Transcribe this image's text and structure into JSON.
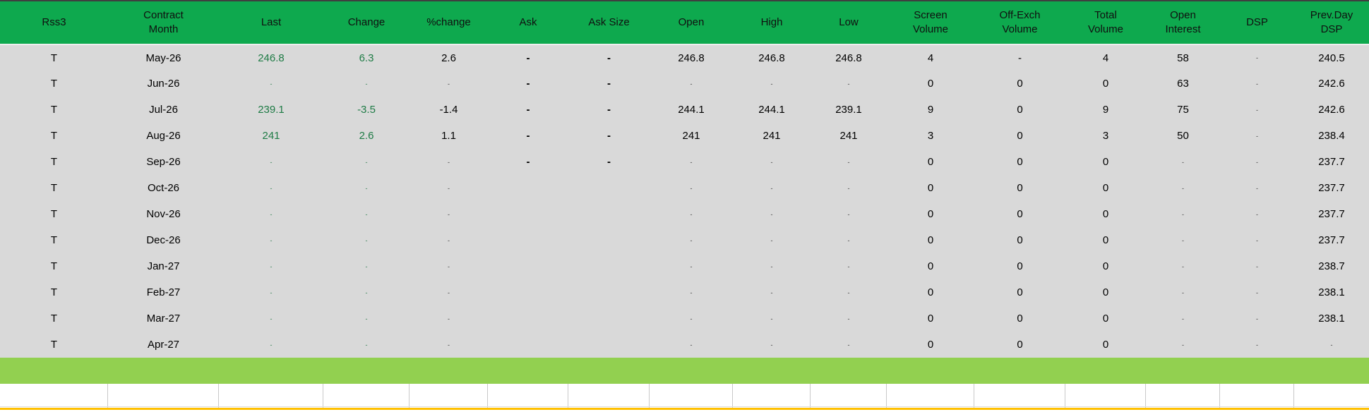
{
  "colors": {
    "header_green": "#0ea94e",
    "row_gray": "#d9d9d9",
    "value_green_text": "#1e7b45",
    "summary_bar_green": "#92d050",
    "bottom_accent_yellow": "#ffc000"
  },
  "header": {
    "columns": [
      {
        "key": "rss3",
        "label": "Rss3"
      },
      {
        "key": "contract-month",
        "label": "Contract\nMonth"
      },
      {
        "key": "last",
        "label": "Last"
      },
      {
        "key": "change",
        "label": "Change"
      },
      {
        "key": "pct-change",
        "label": "%change"
      },
      {
        "key": "ask",
        "label": "Ask"
      },
      {
        "key": "ask-size",
        "label": "Ask Size"
      },
      {
        "key": "open",
        "label": "Open"
      },
      {
        "key": "high",
        "label": "High"
      },
      {
        "key": "low",
        "label": "Low"
      },
      {
        "key": "screen-volume",
        "label": "Screen\nVolume"
      },
      {
        "key": "off-exch-volume",
        "label": "Off-Exch\nVolume"
      },
      {
        "key": "total-volume",
        "label": "Total\nVolume"
      },
      {
        "key": "open-interest",
        "label": "Open\nInterest"
      },
      {
        "key": "dsp",
        "label": "DSP"
      },
      {
        "key": "prevday-dsp",
        "label": "Prev.Day\nDSP"
      }
    ]
  },
  "rows": [
    {
      "cells": [
        {
          "v": "T",
          "k": "t"
        },
        {
          "v": "May-26",
          "k": "t"
        },
        {
          "v": "246.8",
          "k": "g"
        },
        {
          "v": "6.3",
          "k": "g"
        },
        {
          "v": "2.6",
          "k": "t"
        },
        {
          "v": "-",
          "k": "bd"
        },
        {
          "v": "-",
          "k": "bd"
        },
        {
          "v": "246.8",
          "k": "t"
        },
        {
          "v": "246.8",
          "k": "t"
        },
        {
          "v": "246.8",
          "k": "t"
        },
        {
          "v": "4",
          "k": "t"
        },
        {
          "v": "-",
          "k": "d"
        },
        {
          "v": "4",
          "k": "t"
        },
        {
          "v": "58",
          "k": "t"
        },
        {
          "v": "-",
          "k": "s"
        },
        {
          "v": "240.5",
          "k": "t"
        }
      ]
    },
    {
      "cells": [
        {
          "v": "T",
          "k": "t"
        },
        {
          "v": "Jun-26",
          "k": "t"
        },
        {
          "v": "-",
          "k": "sg"
        },
        {
          "v": "-",
          "k": "sg"
        },
        {
          "v": "-",
          "k": "s"
        },
        {
          "v": "-",
          "k": "bd"
        },
        {
          "v": "-",
          "k": "bd"
        },
        {
          "v": "-",
          "k": "s"
        },
        {
          "v": "-",
          "k": "s"
        },
        {
          "v": "-",
          "k": "s"
        },
        {
          "v": "0",
          "k": "t"
        },
        {
          "v": "0",
          "k": "t"
        },
        {
          "v": "0",
          "k": "t"
        },
        {
          "v": "63",
          "k": "t"
        },
        {
          "v": "-",
          "k": "s"
        },
        {
          "v": "242.6",
          "k": "t"
        }
      ]
    },
    {
      "cells": [
        {
          "v": "T",
          "k": "t"
        },
        {
          "v": "Jul-26",
          "k": "t"
        },
        {
          "v": "239.1",
          "k": "g"
        },
        {
          "v": "-3.5",
          "k": "g"
        },
        {
          "v": "-1.4",
          "k": "t"
        },
        {
          "v": "-",
          "k": "bd"
        },
        {
          "v": "-",
          "k": "bd"
        },
        {
          "v": "244.1",
          "k": "t"
        },
        {
          "v": "244.1",
          "k": "t"
        },
        {
          "v": "239.1",
          "k": "t"
        },
        {
          "v": "9",
          "k": "t"
        },
        {
          "v": "0",
          "k": "t"
        },
        {
          "v": "9",
          "k": "t"
        },
        {
          "v": "75",
          "k": "t"
        },
        {
          "v": "-",
          "k": "s"
        },
        {
          "v": "242.6",
          "k": "t"
        }
      ]
    },
    {
      "cells": [
        {
          "v": "T",
          "k": "t"
        },
        {
          "v": "Aug-26",
          "k": "t"
        },
        {
          "v": "241",
          "k": "g"
        },
        {
          "v": "2.6",
          "k": "g"
        },
        {
          "v": "1.1",
          "k": "t"
        },
        {
          "v": "-",
          "k": "bd"
        },
        {
          "v": "-",
          "k": "bd"
        },
        {
          "v": "241",
          "k": "t"
        },
        {
          "v": "241",
          "k": "t"
        },
        {
          "v": "241",
          "k": "t"
        },
        {
          "v": "3",
          "k": "t"
        },
        {
          "v": "0",
          "k": "t"
        },
        {
          "v": "3",
          "k": "t"
        },
        {
          "v": "50",
          "k": "t"
        },
        {
          "v": "-",
          "k": "s"
        },
        {
          "v": "238.4",
          "k": "t"
        }
      ]
    },
    {
      "cells": [
        {
          "v": "T",
          "k": "t"
        },
        {
          "v": "Sep-26",
          "k": "t"
        },
        {
          "v": "-",
          "k": "sg"
        },
        {
          "v": "-",
          "k": "sg"
        },
        {
          "v": "-",
          "k": "s"
        },
        {
          "v": "-",
          "k": "bd"
        },
        {
          "v": "-",
          "k": "bd"
        },
        {
          "v": "-",
          "k": "s"
        },
        {
          "v": "-",
          "k": "s"
        },
        {
          "v": "-",
          "k": "s"
        },
        {
          "v": "0",
          "k": "t"
        },
        {
          "v": "0",
          "k": "t"
        },
        {
          "v": "0",
          "k": "t"
        },
        {
          "v": "-",
          "k": "s"
        },
        {
          "v": "-",
          "k": "s"
        },
        {
          "v": "237.7",
          "k": "t"
        }
      ]
    },
    {
      "cells": [
        {
          "v": "T",
          "k": "t"
        },
        {
          "v": "Oct-26",
          "k": "t"
        },
        {
          "v": "-",
          "k": "sg"
        },
        {
          "v": "-",
          "k": "sg"
        },
        {
          "v": "-",
          "k": "s"
        },
        {
          "v": "",
          "k": "e"
        },
        {
          "v": "",
          "k": "e"
        },
        {
          "v": "-",
          "k": "s"
        },
        {
          "v": "-",
          "k": "s"
        },
        {
          "v": "-",
          "k": "s"
        },
        {
          "v": "0",
          "k": "t"
        },
        {
          "v": "0",
          "k": "t"
        },
        {
          "v": "0",
          "k": "t"
        },
        {
          "v": "-",
          "k": "s"
        },
        {
          "v": "-",
          "k": "s"
        },
        {
          "v": "237.7",
          "k": "t"
        }
      ]
    },
    {
      "cells": [
        {
          "v": "T",
          "k": "t"
        },
        {
          "v": "Nov-26",
          "k": "t"
        },
        {
          "v": "-",
          "k": "sg"
        },
        {
          "v": "-",
          "k": "sg"
        },
        {
          "v": "-",
          "k": "s"
        },
        {
          "v": "",
          "k": "e"
        },
        {
          "v": "",
          "k": "e"
        },
        {
          "v": "-",
          "k": "s"
        },
        {
          "v": "-",
          "k": "s"
        },
        {
          "v": "-",
          "k": "s"
        },
        {
          "v": "0",
          "k": "t"
        },
        {
          "v": "0",
          "k": "t"
        },
        {
          "v": "0",
          "k": "t"
        },
        {
          "v": "-",
          "k": "s"
        },
        {
          "v": "-",
          "k": "s"
        },
        {
          "v": "237.7",
          "k": "t"
        }
      ]
    },
    {
      "cells": [
        {
          "v": "T",
          "k": "t"
        },
        {
          "v": "Dec-26",
          "k": "t"
        },
        {
          "v": "-",
          "k": "sg"
        },
        {
          "v": "-",
          "k": "sg"
        },
        {
          "v": "-",
          "k": "s"
        },
        {
          "v": "",
          "k": "e"
        },
        {
          "v": "",
          "k": "e"
        },
        {
          "v": "-",
          "k": "s"
        },
        {
          "v": "-",
          "k": "s"
        },
        {
          "v": "-",
          "k": "s"
        },
        {
          "v": "0",
          "k": "t"
        },
        {
          "v": "0",
          "k": "t"
        },
        {
          "v": "0",
          "k": "t"
        },
        {
          "v": "-",
          "k": "s"
        },
        {
          "v": "-",
          "k": "s"
        },
        {
          "v": "237.7",
          "k": "t"
        }
      ]
    },
    {
      "cells": [
        {
          "v": "T",
          "k": "t"
        },
        {
          "v": "Jan-27",
          "k": "t"
        },
        {
          "v": "-",
          "k": "sg"
        },
        {
          "v": "-",
          "k": "sg"
        },
        {
          "v": "-",
          "k": "s"
        },
        {
          "v": "",
          "k": "e"
        },
        {
          "v": "",
          "k": "e"
        },
        {
          "v": "-",
          "k": "s"
        },
        {
          "v": "-",
          "k": "s"
        },
        {
          "v": "-",
          "k": "s"
        },
        {
          "v": "0",
          "k": "t"
        },
        {
          "v": "0",
          "k": "t"
        },
        {
          "v": "0",
          "k": "t"
        },
        {
          "v": "-",
          "k": "s"
        },
        {
          "v": "-",
          "k": "s"
        },
        {
          "v": "238.7",
          "k": "t"
        }
      ]
    },
    {
      "cells": [
        {
          "v": "T",
          "k": "t"
        },
        {
          "v": "Feb-27",
          "k": "t"
        },
        {
          "v": "-",
          "k": "sg"
        },
        {
          "v": "-",
          "k": "sg"
        },
        {
          "v": "-",
          "k": "s"
        },
        {
          "v": "",
          "k": "e"
        },
        {
          "v": "",
          "k": "e"
        },
        {
          "v": "-",
          "k": "s"
        },
        {
          "v": "-",
          "k": "s"
        },
        {
          "v": "-",
          "k": "s"
        },
        {
          "v": "0",
          "k": "t"
        },
        {
          "v": "0",
          "k": "t"
        },
        {
          "v": "0",
          "k": "t"
        },
        {
          "v": "-",
          "k": "s"
        },
        {
          "v": "-",
          "k": "s"
        },
        {
          "v": "238.1",
          "k": "t"
        }
      ]
    },
    {
      "cells": [
        {
          "v": "T",
          "k": "t"
        },
        {
          "v": "Mar-27",
          "k": "t"
        },
        {
          "v": "-",
          "k": "sg"
        },
        {
          "v": "-",
          "k": "sg"
        },
        {
          "v": "-",
          "k": "s"
        },
        {
          "v": "",
          "k": "e"
        },
        {
          "v": "",
          "k": "e"
        },
        {
          "v": "-",
          "k": "s"
        },
        {
          "v": "-",
          "k": "s"
        },
        {
          "v": "-",
          "k": "s"
        },
        {
          "v": "0",
          "k": "t"
        },
        {
          "v": "0",
          "k": "t"
        },
        {
          "v": "0",
          "k": "t"
        },
        {
          "v": "-",
          "k": "s"
        },
        {
          "v": "-",
          "k": "s"
        },
        {
          "v": "238.1",
          "k": "t"
        }
      ]
    },
    {
      "cells": [
        {
          "v": "T",
          "k": "t"
        },
        {
          "v": "Apr-27",
          "k": "t"
        },
        {
          "v": "-",
          "k": "sg"
        },
        {
          "v": "-",
          "k": "sg"
        },
        {
          "v": "-",
          "k": "s"
        },
        {
          "v": "",
          "k": "e"
        },
        {
          "v": "",
          "k": "e"
        },
        {
          "v": "-",
          "k": "s"
        },
        {
          "v": "-",
          "k": "s"
        },
        {
          "v": "-",
          "k": "s"
        },
        {
          "v": "0",
          "k": "t"
        },
        {
          "v": "0",
          "k": "t"
        },
        {
          "v": "0",
          "k": "t"
        },
        {
          "v": "-",
          "k": "s"
        },
        {
          "v": "-",
          "k": "s"
        },
        {
          "v": "-",
          "k": "s"
        }
      ]
    }
  ]
}
